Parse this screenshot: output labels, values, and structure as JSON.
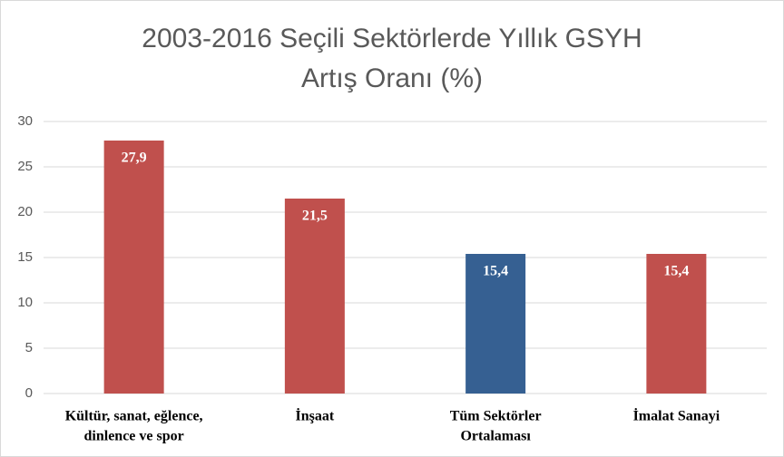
{
  "chart_data": {
    "type": "bar",
    "title": [
      "2003-2016 Seçili Sektörlerde Yıllık GSYH",
      "Artış Oranı (%)"
    ],
    "categories": [
      [
        "Kültür, sanat, eğlence,",
        "dinlence ve spor"
      ],
      [
        "İnşaat"
      ],
      [
        "Tüm Sektörler",
        "Ortalaması"
      ],
      [
        "İmalat Sanayi"
      ]
    ],
    "values": [
      27.9,
      21.5,
      15.4,
      15.4
    ],
    "value_labels": [
      "27,9",
      "21,5",
      "15,4",
      "15,4"
    ],
    "colors": [
      "#c0504d",
      "#c0504d",
      "#366092",
      "#c0504d"
    ],
    "ylim": [
      0,
      30
    ],
    "yticks": [
      0,
      5,
      10,
      15,
      20,
      25,
      30
    ],
    "grid": true
  }
}
